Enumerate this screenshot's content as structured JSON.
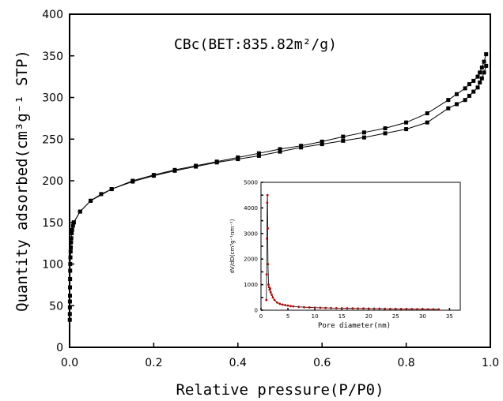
{
  "chart_data": {
    "type": "line",
    "main": {
      "xlabel": "Relative pressure(P/P0)",
      "ylabel": "Quantity adsorbed(cm³g⁻¹ STP)",
      "annotation": "CBc(BET:835.82m²/g)",
      "xlim": [
        0,
        1.0
      ],
      "ylim": [
        0,
        400
      ],
      "xticks": [
        "0.0",
        "0.2",
        "0.4",
        "0.6",
        "0.8",
        "1.0"
      ],
      "yticks": [
        "0",
        "50",
        "100",
        "150",
        "200",
        "250",
        "300",
        "350",
        "400"
      ],
      "marker_color": "#000000",
      "series": [
        {
          "x": [
            0.0005,
            0.0006,
            0.0007,
            0.0008,
            0.0009,
            0.001,
            0.0012,
            0.0014,
            0.0016,
            0.002,
            0.0025,
            0.003,
            0.0035,
            0.004,
            0.005,
            0.006,
            0.008,
            0.01,
            0.025,
            0.05,
            0.075,
            0.1,
            0.15,
            0.2,
            0.25,
            0.3,
            0.35,
            0.4,
            0.45,
            0.5,
            0.55,
            0.6,
            0.65,
            0.7,
            0.75,
            0.8,
            0.85,
            0.9,
            0.92,
            0.94,
            0.95,
            0.96,
            0.97,
            0.975,
            0.98,
            0.985,
            0.99
          ],
          "y": [
            33,
            40,
            48,
            55,
            62,
            72,
            82,
            92,
            100,
            108,
            115,
            120,
            126,
            131,
            137,
            141,
            146,
            150,
            163,
            176,
            184,
            190,
            199,
            206,
            212,
            217,
            222,
            226,
            230,
            235,
            240,
            244,
            248,
            252,
            257,
            262,
            270,
            287,
            292,
            297,
            302,
            307,
            312,
            318,
            323,
            330,
            338
          ]
        },
        {
          "x": [
            0.99,
            0.985,
            0.98,
            0.975,
            0.97,
            0.96,
            0.95,
            0.94,
            0.92,
            0.9,
            0.85,
            0.8,
            0.75,
            0.7,
            0.65,
            0.6,
            0.55,
            0.5,
            0.45,
            0.4,
            0.35,
            0.3,
            0.25,
            0.2,
            0.15,
            0.1,
            0.05,
            0.025,
            0.01
          ],
          "y": [
            352,
            343,
            336,
            330,
            325,
            320,
            316,
            311,
            304,
            297,
            281,
            270,
            263,
            258,
            253,
            247,
            242,
            238,
            233,
            228,
            223,
            218,
            213,
            207,
            200,
            190,
            176,
            163,
            150
          ]
        }
      ]
    },
    "inset": {
      "xlabel": "Pore diameter(nm)",
      "ylabel": "dV/dD(cm³g⁻¹nm⁻¹)",
      "xlim": [
        0,
        37
      ],
      "ylim": [
        0,
        5000
      ],
      "xticks": [
        "0",
        "5",
        "10",
        "15",
        "20",
        "25",
        "30",
        "35"
      ],
      "yticks": [
        "0",
        "500",
        "1000",
        "1500",
        "2000",
        "2500",
        "3000",
        "3500",
        "4000",
        "4500",
        "5000"
      ],
      "marker_color": "#c00000",
      "line_color": "#000000",
      "series": [
        {
          "x": [
            1.0,
            1.05,
            1.1,
            1.15,
            1.2,
            1.25,
            1.3,
            1.4,
            1.5,
            1.6,
            1.7,
            1.8,
            2.0,
            2.2,
            2.5,
            3.0,
            3.5,
            4.0,
            4.5,
            5.0,
            5.5,
            6.0,
            7.0,
            8.0,
            9.0,
            10.0,
            11.0,
            12.0,
            13.0,
            14.0,
            15.0,
            16.0,
            17.0,
            18.0,
            19.0,
            20.0,
            21.0,
            22.0,
            23.0,
            24.0,
            25.0,
            26.0,
            27.0,
            28.0,
            29.0,
            30.0,
            31.0,
            32.0,
            33.0
          ],
          "y": [
            400,
            1400,
            2800,
            4200,
            4500,
            3200,
            1800,
            1000,
            900,
            800,
            850,
            700,
            600,
            500,
            400,
            300,
            250,
            220,
            200,
            180,
            160,
            150,
            130,
            120,
            110,
            100,
            95,
            90,
            85,
            80,
            78,
            75,
            72,
            70,
            68,
            65,
            62,
            60,
            58,
            55,
            52,
            50,
            48,
            45,
            42,
            40,
            38,
            36,
            35
          ]
        }
      ]
    }
  }
}
